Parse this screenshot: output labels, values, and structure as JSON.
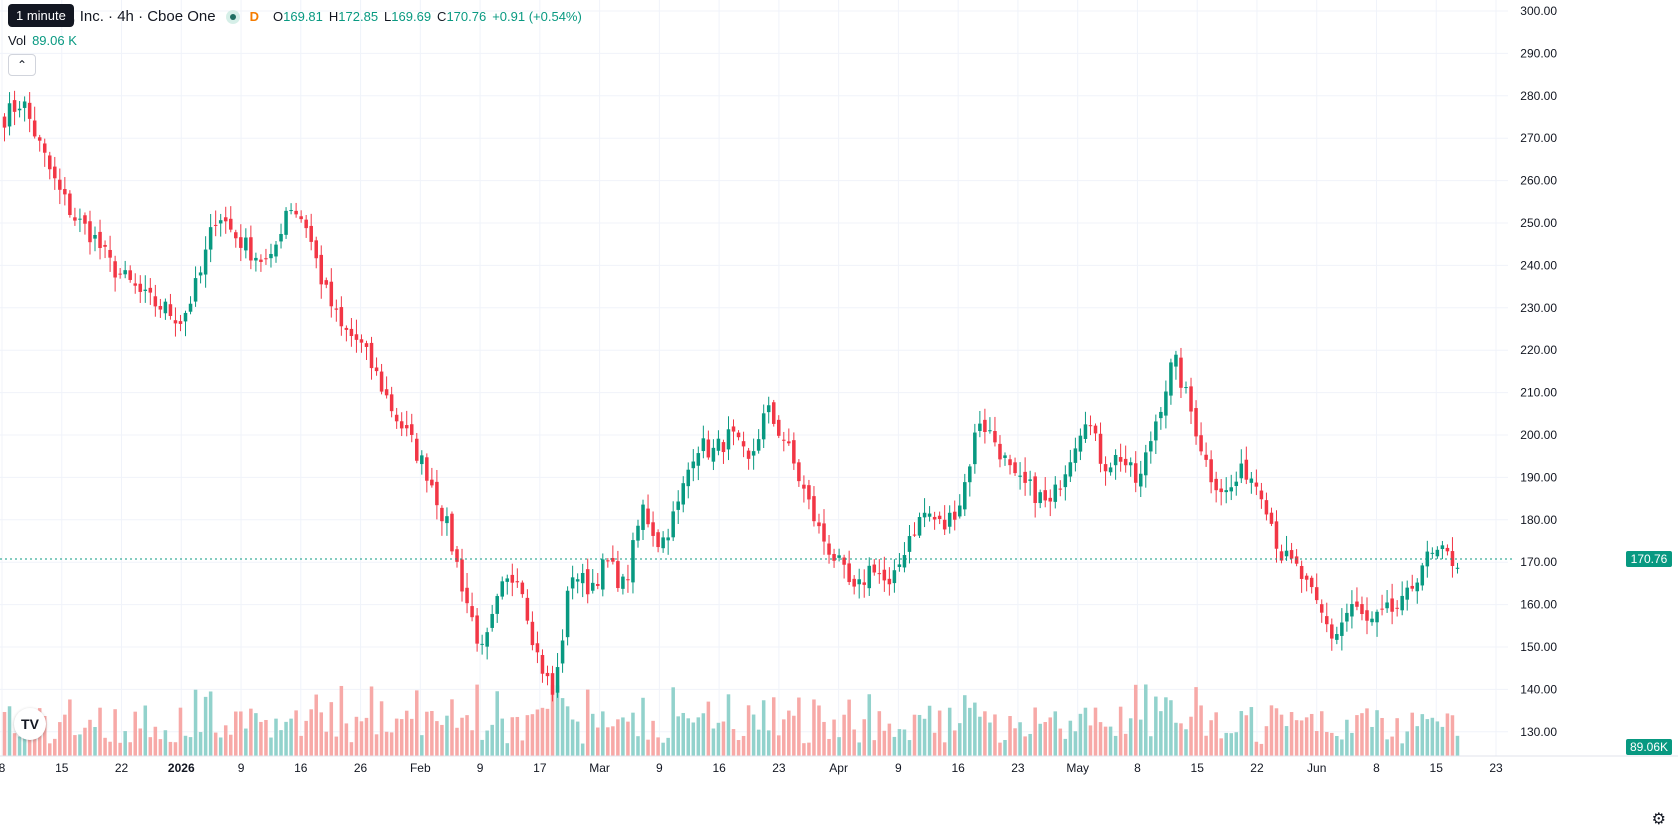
{
  "legend": {
    "title": "se Global, Inc. · 4h · Cboe One",
    "d_marker": "D",
    "open_label": "O",
    "open": "169.81",
    "high_label": "H",
    "high": "172.85",
    "low_label": "L",
    "low": "169.69",
    "close_label": "C",
    "close": "170.76",
    "change": "+0.91 (+0.54%)"
  },
  "tooltip": "1 minute",
  "volume_legend": {
    "label": "Vol",
    "value": "89.06 K"
  },
  "collapse_icon": "chevron-up-icon",
  "logo_text": "TV",
  "last_price_tag": "170.76",
  "last_volume_tag": "89.06K",
  "colors": {
    "up": "#089981",
    "down": "#f23645",
    "up_vol": "#92d2cc",
    "down_vol": "#f7a9a7",
    "grid": "#f0f3fa",
    "text": "#131722"
  },
  "chart_data": {
    "type": "candlestick",
    "timeframe": "4h",
    "y_axis": {
      "ticks": [
        "300.00",
        "290.00",
        "280.00",
        "270.00",
        "260.00",
        "250.00",
        "240.00",
        "230.00",
        "220.00",
        "210.00",
        "200.00",
        "190.00",
        "180.00",
        "170.00",
        "160.00",
        "150.00",
        "140.00",
        "130.00"
      ],
      "ylim": [
        125,
        302
      ]
    },
    "x_axis": {
      "ticks": [
        "8",
        "15",
        "22",
        "2026",
        "9",
        "16",
        "26",
        "Feb",
        "9",
        "17",
        "Mar",
        "9",
        "16",
        "23",
        "Apr",
        "9",
        "16",
        "23",
        "May",
        "8",
        "15",
        "22",
        "Jun",
        "8",
        "15",
        "23"
      ]
    },
    "last_price": 170.76,
    "grid": true,
    "close_path": [
      275,
      279,
      268,
      258,
      251,
      247,
      240,
      236,
      232,
      230,
      227,
      237,
      253,
      247,
      243,
      240,
      255,
      250,
      235,
      225,
      222,
      214,
      205,
      198,
      190,
      178,
      162,
      148,
      163,
      168,
      149,
      138,
      168,
      164,
      170,
      164,
      183,
      174,
      183,
      198,
      196,
      200,
      193,
      206,
      199,
      188,
      177,
      170,
      162,
      170,
      163,
      176,
      182,
      178,
      185,
      204,
      198,
      189,
      187,
      183,
      194,
      205,
      193,
      195,
      188,
      204,
      218,
      205,
      191,
      186,
      192,
      187,
      172,
      168,
      160,
      152,
      160,
      155,
      158,
      160,
      170,
      172,
      170
    ]
  }
}
